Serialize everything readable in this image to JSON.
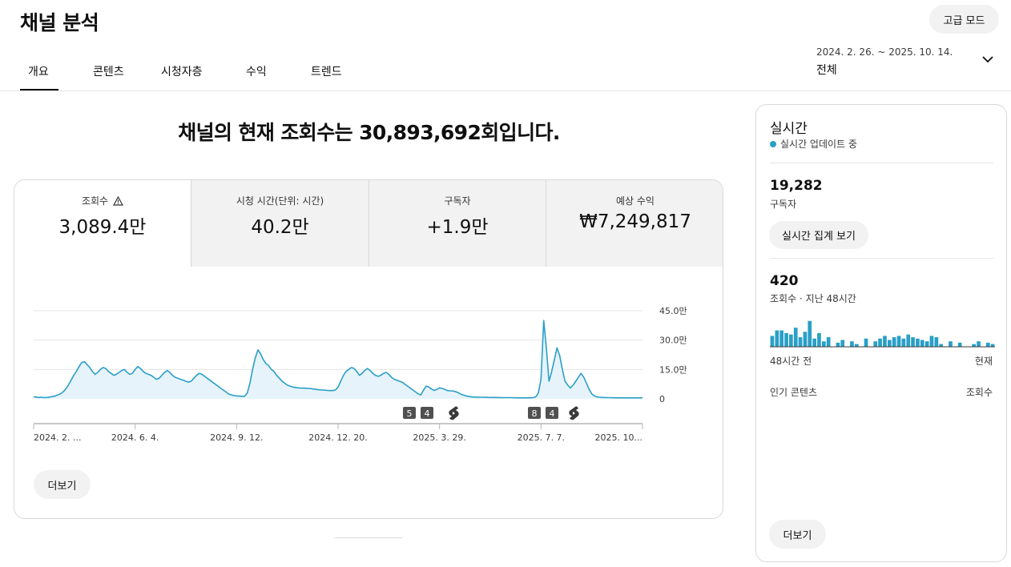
{
  "page": {
    "title": "채널 분석",
    "advanced_mode": "고급 모드"
  },
  "tabs": [
    "개요",
    "콘텐츠",
    "시청자층",
    "수익",
    "트렌드"
  ],
  "date": {
    "range": "2024. 2. 26. ~ 2025. 10. 14.",
    "scope": "전체"
  },
  "headline": "채널의 현재 조회수는 30,893,692회입니다.",
  "metrics": [
    {
      "label": "조회수",
      "value": "3,089.4만",
      "warning": true
    },
    {
      "label": "시청 시간(단위: 시간)",
      "value": "40.2만"
    },
    {
      "label": "구독자",
      "value": "+1.9만"
    },
    {
      "label": "예상 수익",
      "value": "₩7,249,817"
    }
  ],
  "more_label": "더보기",
  "markers": [
    {
      "label": "5",
      "type": "badge"
    },
    {
      "label": "4",
      "type": "badge"
    },
    {
      "type": "shorts-icon"
    },
    {
      "label": "8",
      "type": "badge"
    },
    {
      "label": "4",
      "type": "badge"
    },
    {
      "type": "shorts-icon"
    }
  ],
  "chart_data": {
    "type": "area",
    "series": [
      {
        "values": [
          1.1,
          0.9,
          0.7,
          0.8,
          0.6,
          0.7,
          0.9,
          1.2,
          1.4,
          2,
          2.5,
          3.5,
          5,
          7,
          9.5,
          12,
          14,
          16.5,
          18.5,
          19,
          17.5,
          16,
          14,
          12.5,
          13.5,
          15,
          16,
          15.5,
          14,
          13,
          12,
          12.5,
          13.5,
          14.5,
          15,
          13.5,
          12.5,
          13,
          15,
          16.5,
          15.5,
          14,
          13,
          12.5,
          12,
          11,
          10,
          10.5,
          12,
          13.5,
          14.5,
          13.5,
          12,
          11,
          10.5,
          10,
          9.5,
          9,
          8.5,
          9,
          10.5,
          12,
          13,
          12.5,
          11.5,
          10.5,
          9.5,
          8.5,
          7.5,
          6.5,
          5.5,
          4.5,
          3.5,
          2.5,
          2,
          1.7,
          1.5,
          1.4,
          1.3,
          1.3,
          3,
          8,
          15,
          21,
          25,
          23,
          20,
          18,
          17,
          15,
          14,
          12,
          10.5,
          9,
          8,
          7,
          6.5,
          6,
          5.8,
          5.6,
          5.5,
          5.5,
          5.4,
          5.3,
          5.2,
          5,
          4.8,
          4.6,
          4.5,
          4.4,
          4.3,
          4.2,
          4.2,
          4.5,
          6,
          9,
          12,
          14,
          15,
          16,
          15.5,
          14,
          12,
          13,
          14.5,
          15.5,
          14.5,
          13,
          12,
          11.5,
          12,
          13,
          13.5,
          12.5,
          11,
          10,
          9.5,
          9,
          8.5,
          7.5,
          6.5,
          5.5,
          4.5,
          3.5,
          2.5,
          2,
          4.5,
          6.5,
          6,
          5,
          4.3,
          4.8,
          5.6,
          5.3,
          4.8,
          4.2,
          4.1,
          4,
          3.7,
          3.1,
          2.4,
          1.9,
          1.5,
          1.2,
          1,
          0.9,
          0.85,
          0.8,
          0.8,
          0.8,
          0.75,
          0.7,
          0.7,
          0.7,
          0.65,
          0.65,
          0.6,
          0.6,
          0.6,
          0.6,
          0.55,
          0.55,
          0.55,
          0.5,
          0.5,
          0.5,
          0.5,
          0.6,
          1,
          3,
          10,
          40,
          26,
          9,
          14,
          20,
          26,
          22,
          15,
          9,
          7,
          5.5,
          7,
          9,
          11,
          13,
          11,
          8,
          5,
          2.5,
          1.5,
          1,
          0.8,
          0.7,
          0.65,
          0.6,
          0.6,
          0.55,
          0.55,
          0.5,
          0.5,
          0.5,
          0.5,
          0.5,
          0.5,
          0.5,
          0.5,
          0.5,
          0.5
        ]
      }
    ],
    "xticks": [
      "2024. 2. ...",
      "2024. 6. 4.",
      "2024. 9. 12.",
      "2024. 12. 20.",
      "2025. 3. 29.",
      "2025. 7. 7.",
      "2025. 10..."
    ],
    "yticks": [
      "45.0만",
      "30.0만",
      "15.0만",
      "0"
    ],
    "ylim": [
      0,
      45
    ],
    "unit": "만",
    "color": "#2a9fc7",
    "fill": "#e6f3fa",
    "grid": true
  },
  "realtime": {
    "title": "실시간",
    "status": "실시간 업데이트 중",
    "subscribers": "19,282",
    "subscribers_label": "구독자",
    "summary_btn": "실시간 집계 보기",
    "views": "420",
    "views_label": "조회수 · 지난 48시간",
    "views_hourly": [
      0.4,
      0.6,
      0.6,
      0.5,
      0.45,
      0.7,
      0.35,
      0.55,
      0.95,
      0.3,
      0.5,
      0.2,
      0.35,
      0,
      0.15,
      0.25,
      0,
      0.2,
      0.1,
      0,
      0.3,
      0,
      0.2,
      0.3,
      0.4,
      0.25,
      0.35,
      0.4,
      0.3,
      0.45,
      0.35,
      0.3,
      0.25,
      0.2,
      0.4,
      0.35,
      0.1,
      0,
      0.2,
      0,
      0.15,
      0,
      0,
      0.1,
      0.2,
      0,
      0.15,
      0.1
    ],
    "x_start": "48시간 전",
    "x_end": "현재",
    "top_content": "인기 콘텐츠",
    "top_metric": "조회수",
    "more": "더보기"
  }
}
